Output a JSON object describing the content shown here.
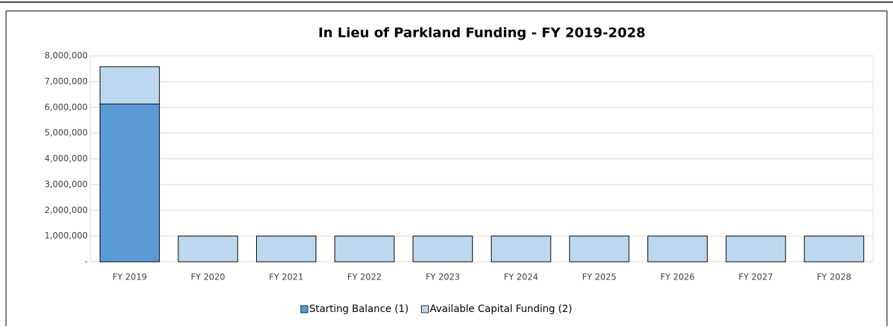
{
  "chart_data": {
    "type": "stacked_bar",
    "title": "In Lieu of Parkland Funding - FY 2019-2028",
    "categories": [
      "FY 2019",
      "FY 2020",
      "FY 2021",
      "FY 2022",
      "FY 2023",
      "FY 2024",
      "FY 2025",
      "FY 2026",
      "FY 2027",
      "FY 2028"
    ],
    "series": [
      {
        "name": "Starting Balance (1)",
        "color": "#5b9bd5",
        "values": [
          6130000,
          0,
          0,
          0,
          0,
          0,
          0,
          0,
          0,
          0
        ]
      },
      {
        "name": "Available Capital Funding (2)",
        "color": "#bdd7ee",
        "values": [
          1450000,
          1000000,
          1000000,
          1000000,
          1000000,
          1000000,
          1000000,
          1000000,
          1000000,
          1000000
        ]
      }
    ],
    "ylim": [
      0,
      8000000
    ],
    "yticks": [
      {
        "value": 0,
        "label": "-"
      },
      {
        "value": 1000000,
        "label": "1,000,000"
      },
      {
        "value": 2000000,
        "label": "2,000,000"
      },
      {
        "value": 3000000,
        "label": "3,000,000"
      },
      {
        "value": 4000000,
        "label": "4,000,000"
      },
      {
        "value": 5000000,
        "label": "5,000,000"
      },
      {
        "value": 6000000,
        "label": "6,000,000"
      },
      {
        "value": 7000000,
        "label": "7,000,000"
      },
      {
        "value": 8000000,
        "label": "8,000,000"
      }
    ],
    "grid": true,
    "legend": "bottom"
  }
}
